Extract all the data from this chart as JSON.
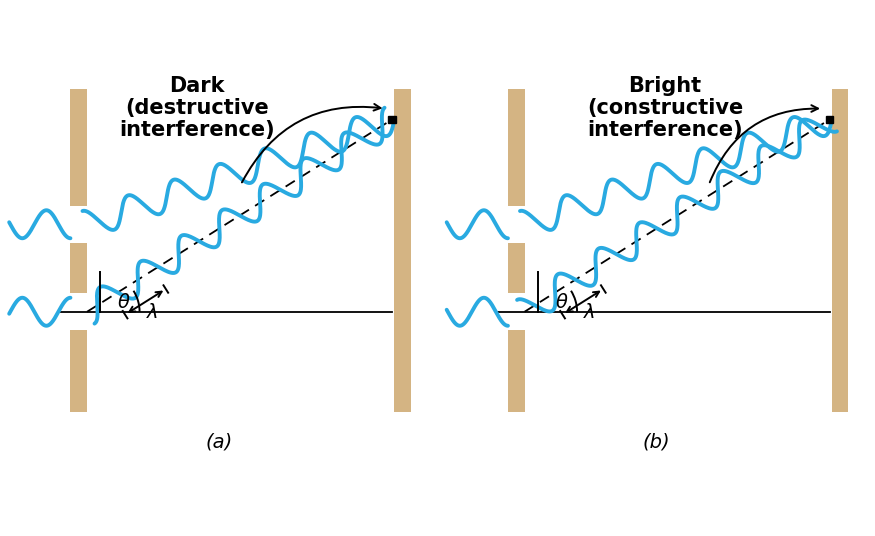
{
  "fig_width": 8.75,
  "fig_height": 5.36,
  "bg_color": "#ffffff",
  "wall_color": "#d4b483",
  "wave_color": "#29aae1",
  "wave_lw": 2.8,
  "anno_lw": 1.4,
  "panel_a_title": "Dark\n(destructive\ninterference)",
  "panel_b_title": "Bright\n(constructive\ninterference)",
  "label_a": "(a)",
  "label_b": "(b)",
  "theta_label": "θ",
  "lambda_label": "λ",
  "title_fontsize": 15,
  "label_fontsize": 14,
  "anno_fontsize": 13
}
